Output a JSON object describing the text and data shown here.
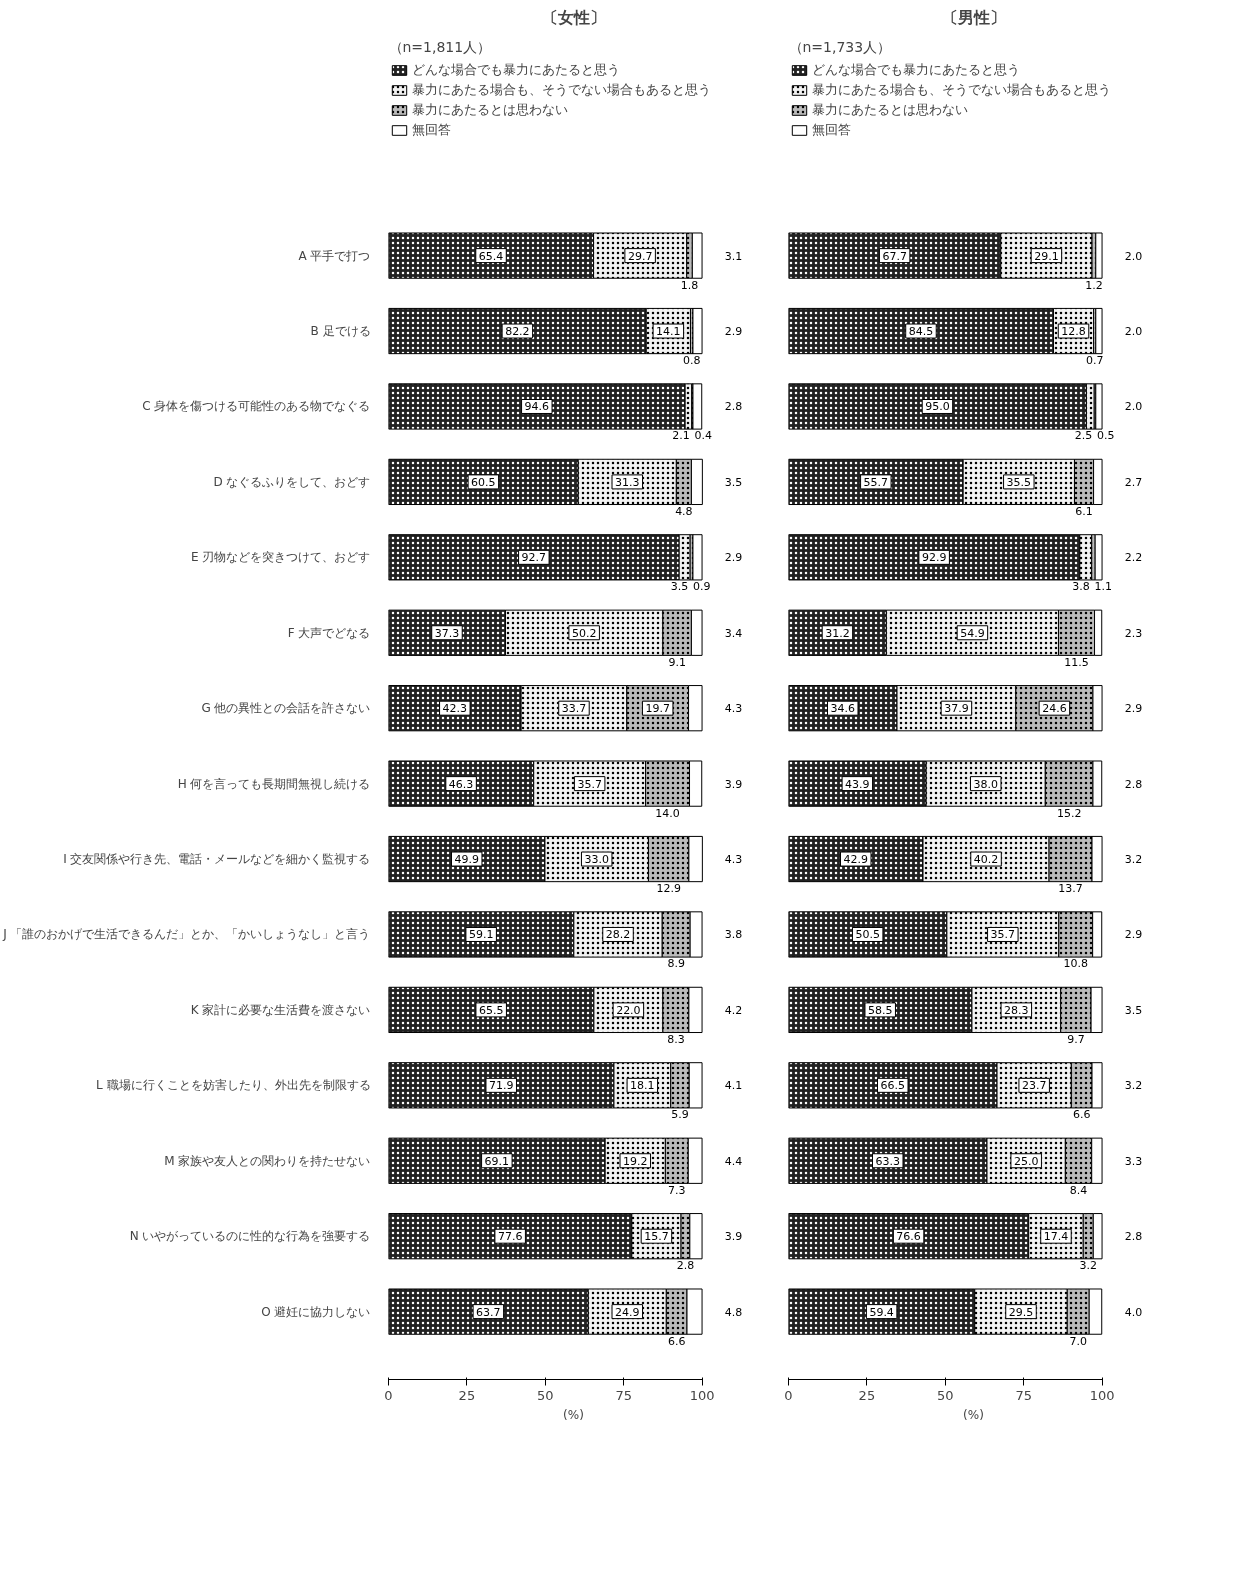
{
  "chart_data": [
    {
      "type": "bar",
      "orientation": "horizontal",
      "stacked": true,
      "title": "〔女性〕",
      "subtitle": "（n=1,811人）",
      "xlabel": "(%)",
      "legend": "top",
      "grid": false,
      "categories": [
        "A 平手で打つ",
        "B 足でける",
        "C 身体を傷つける可能性のある物でなぐる",
        "D なぐるふりをして、おどす",
        "E 刃物などを突きつけて、おどす",
        "F 大声でどなる",
        "G 他の異性との会話を許さない",
        "H 何を言っても長期間無視し続ける",
        "I 交友関係や行き先、電話・メールなどを細かく監視する",
        "J 「誰のおかげで生活できるんだ」とか、「かいしょうなし」と言う",
        "K 家計に必要な生活費を渡さない",
        "L 職場に行くことを妨害したり、外出先を制限する",
        "M 家族や友人との関わりを持たせない",
        "N いやがっているのに性的な行為を強要する",
        "O 避妊に協力しない"
      ],
      "xlim": [
        0,
        100
      ],
      "xticks": [
        0,
        25,
        50,
        75,
        100
      ],
      "series": [
        {
          "name": "どんな場合でも暴力にあたると思う",
          "color": "#222222",
          "values": [
            65.4,
            82.2,
            94.6,
            60.5,
            92.7,
            37.3,
            42.3,
            46.3,
            49.9,
            59.1,
            65.5,
            71.9,
            69.1,
            77.6,
            63.7
          ],
          "value_labels": [
            "65.4",
            "82.2",
            "94.6",
            "60.5",
            "92.7",
            "37.3",
            "42.3",
            "46.3",
            "49.9",
            "59.1",
            "65.5",
            "71.9",
            "69.1",
            "77.6",
            "63.7"
          ]
        },
        {
          "name": "暴力にあたる場合も、そうでない場合もあると思う",
          "color": "#f2f2f2",
          "values": [
            29.7,
            14.1,
            2.1,
            31.3,
            3.5,
            50.2,
            33.7,
            35.7,
            33.0,
            28.2,
            22.0,
            18.1,
            19.2,
            15.7,
            24.9
          ],
          "value_labels": [
            "29.7",
            "14.1",
            "2.1",
            "31.3",
            "3.5",
            "50.2",
            "33.7",
            "35.7",
            "33.0",
            "28.2",
            "22.0",
            "18.1",
            "19.2",
            "15.7",
            "24.9"
          ]
        },
        {
          "name": "暴力にあたるとは思わない",
          "color": "#bbbbbb",
          "values": [
            1.8,
            0.8,
            0.4,
            4.8,
            0.9,
            9.1,
            19.7,
            14.0,
            12.9,
            8.9,
            8.3,
            5.9,
            7.3,
            2.8,
            6.6
          ],
          "value_labels": [
            "1.8",
            "0.8",
            "0.4",
            "4.8",
            "0.9",
            "9.1",
            "19.7",
            "14.0",
            "12.9",
            "8.9",
            "8.3",
            "5.9",
            "7.3",
            "2.8",
            "6.6"
          ]
        },
        {
          "name": "無回答",
          "color": "#ffffff",
          "values": [
            3.1,
            2.9,
            2.8,
            3.5,
            2.9,
            3.4,
            4.3,
            3.9,
            4.3,
            3.8,
            4.2,
            4.1,
            4.4,
            3.9,
            4.8
          ],
          "value_labels": [
            "3.1",
            "2.9",
            "2.8",
            "3.5",
            "2.9",
            "3.4",
            "4.3",
            "3.9",
            "4.3",
            "3.8",
            "4.2",
            "4.1",
            "4.4",
            "3.9",
            "4.8"
          ]
        }
      ]
    },
    {
      "type": "bar",
      "orientation": "horizontal",
      "stacked": true,
      "title": "〔男性〕",
      "subtitle": "（n=1,733人）",
      "xlabel": "(%)",
      "legend": "top",
      "grid": false,
      "categories": [
        null,
        null,
        null,
        null,
        null,
        null,
        null,
        null,
        null,
        null,
        null,
        null,
        null,
        null,
        null
      ],
      "xlim": [
        0,
        100
      ],
      "xticks": [
        0,
        25,
        50,
        75,
        100
      ],
      "series": [
        {
          "name": "どんな場合でも暴力にあたると思う",
          "color": "#222222",
          "values": [
            67.7,
            84.5,
            95.0,
            55.7,
            92.9,
            31.2,
            34.6,
            43.9,
            42.9,
            50.5,
            58.5,
            66.5,
            63.3,
            76.6,
            59.4
          ],
          "value_labels": [
            "67.7",
            "84.5",
            "95.0",
            "55.7",
            "92.9",
            "31.2",
            "34.6",
            "43.9",
            "42.9",
            "50.5",
            "58.5",
            "66.5",
            "63.3",
            "76.6",
            "59.4"
          ]
        },
        {
          "name": "暴力にあたる場合も、そうでない場合もあると思う",
          "color": "#f2f2f2",
          "values": [
            29.1,
            12.8,
            2.5,
            35.5,
            3.8,
            54.9,
            37.9,
            38.0,
            40.2,
            35.7,
            28.3,
            23.7,
            25.0,
            17.4,
            29.5
          ],
          "value_labels": [
            "29.1",
            "12.8",
            "2.5",
            "35.5",
            "3.8",
            "54.9",
            "37.9",
            "38.0",
            "40.2",
            "35.7",
            "28.3",
            "23.7",
            "25.0",
            "17.4",
            "29.5"
          ]
        },
        {
          "name": "暴力にあたるとは思わない",
          "color": "#bbbbbb",
          "values": [
            1.2,
            0.7,
            0.5,
            6.1,
            1.1,
            11.5,
            24.6,
            15.2,
            13.7,
            10.8,
            9.7,
            6.6,
            8.4,
            3.2,
            7.0
          ],
          "value_labels": [
            "1.2",
            "0.7",
            "0.5",
            "6.1",
            "1.1",
            "11.5",
            "24.6",
            "15.2",
            "13.7",
            "10.8",
            "9.7",
            "6.6",
            "8.4",
            "3.2",
            "7.0"
          ]
        },
        {
          "name": "無回答",
          "color": "#ffffff",
          "values": [
            2.0,
            2.0,
            2.0,
            2.7,
            2.2,
            2.3,
            2.9,
            2.8,
            3.2,
            2.9,
            3.5,
            3.2,
            3.3,
            2.8,
            4.0
          ],
          "value_labels": [
            "2.0",
            "2.0",
            "2.0",
            "2.7",
            "2.2",
            "2.3",
            "2.9",
            "2.8",
            "3.2",
            "2.9",
            "3.5",
            "3.2",
            "3.3",
            "2.8",
            "4.0"
          ]
        }
      ]
    }
  ]
}
